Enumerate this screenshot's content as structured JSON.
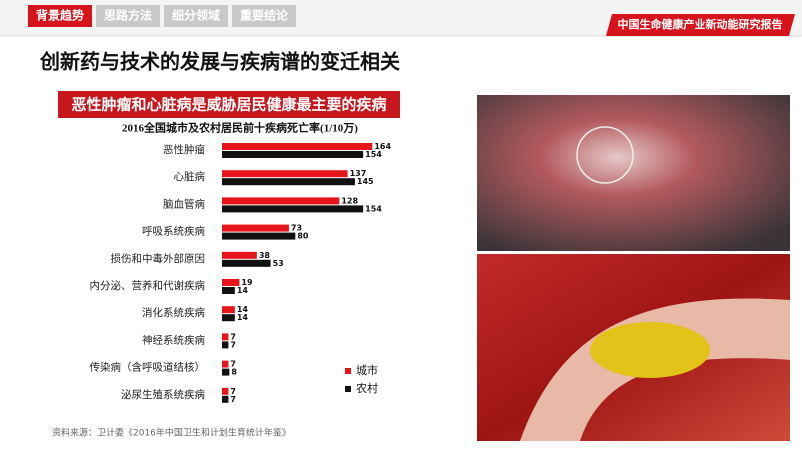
{
  "nav": {
    "tabs": [
      "背景趋势",
      "思路方法",
      "细分领域",
      "重要结论"
    ],
    "report": "中国生命健康产业新动能研究报告"
  },
  "heading": "创新药与技术的发展与疾病谱的变迁相关",
  "banner": "恶性肿瘤和心脏病是威胁居民健康最主要的疾病",
  "source": "资料来源：卫计委《2016年中国卫生和计划生育统计年鉴》",
  "chart_data": {
    "type": "hbar",
    "title": "2016全国城市及农村居民前十疾病死亡率(1/10万)",
    "categories": [
      "恶性肿瘤",
      "心脏病",
      "脑血管病",
      "呼吸系统疾病",
      "损伤和中毒外部原因",
      "内分泌、营养和代谢疾病",
      "消化系统疾病",
      "神经系统疾病",
      "传染病（含呼吸道结核）",
      "泌尿生殖系统疾病"
    ],
    "series": [
      {
        "name": "城市",
        "color": "#e8141c",
        "values": [
          164,
          137,
          128,
          73,
          38,
          19,
          14,
          7,
          7,
          7
        ]
      },
      {
        "name": "农村",
        "color": "#111111",
        "values": [
          154,
          145,
          154,
          80,
          53,
          14,
          14,
          7,
          8,
          7
        ]
      }
    ],
    "xlim": [
      0,
      180
    ],
    "legend": "bottom-right"
  }
}
